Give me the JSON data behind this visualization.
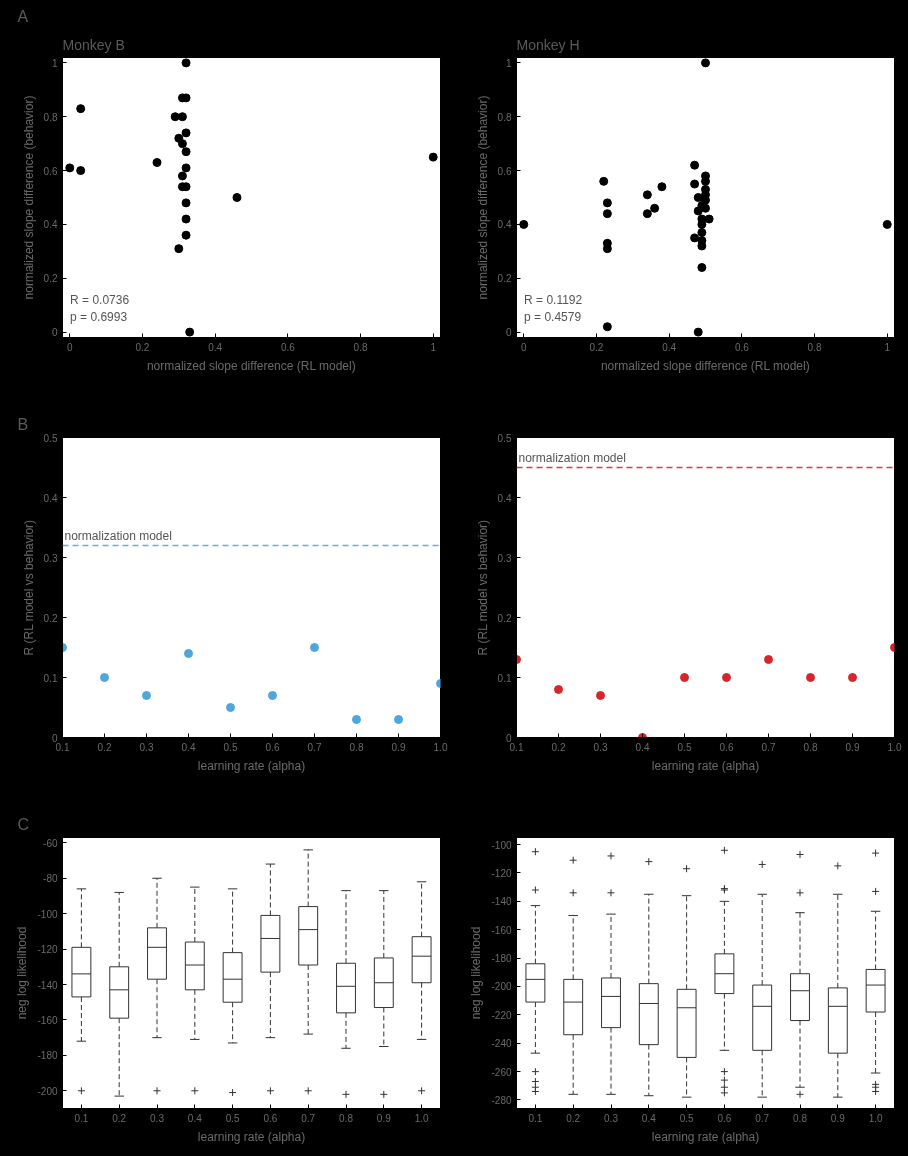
{
  "chart_data": [
    {
      "type": "scatter",
      "title": "Monkey B",
      "xlabel": "normalized slope difference (RL model)",
      "ylabel": "normalized slope difference (behavior)",
      "marker": "circle",
      "xlim": [
        -0.02,
        1.02
      ],
      "ylim": [
        -0.02,
        1.02
      ],
      "xticks": [
        0,
        0.2,
        0.4,
        0.6,
        0.8,
        1
      ],
      "yticks": [
        0,
        0.2,
        0.4,
        0.6,
        0.8,
        1
      ],
      "annotations": [
        "A",
        "R = 0.0736",
        "p = 0.6993"
      ],
      "series": [
        {
          "color": "#000000",
          "x": [
            0.32,
            0.31,
            0.32,
            0.03,
            0.29,
            0.31,
            0.32,
            0.3,
            0.31,
            0.32,
            0.24,
            1.0,
            0.0,
            0.03,
            0.32,
            0.31,
            0.31,
            0.32,
            0.32,
            0.32,
            0.46,
            0.32,
            0.3,
            0.33
          ],
          "values": [
            1.0,
            0.87,
            0.87,
            0.83,
            0.8,
            0.8,
            0.74,
            0.72,
            0.7,
            0.67,
            0.63,
            0.65,
            0.61,
            0.6,
            0.61,
            0.58,
            0.54,
            0.54,
            0.48,
            0.42,
            0.5,
            0.36,
            0.31,
            0.0
          ]
        }
      ]
    },
    {
      "type": "scatter",
      "title": "Monkey H",
      "xlabel": "normalized slope difference (RL model)",
      "ylabel": "normalized slope difference (behavior)",
      "marker": "circle",
      "xlim": [
        -0.02,
        1.02
      ],
      "ylim": [
        -0.02,
        1.02
      ],
      "xticks": [
        0,
        0.2,
        0.4,
        0.6,
        0.8,
        1
      ],
      "yticks": [
        0,
        0.2,
        0.4,
        0.6,
        0.8,
        1
      ],
      "annotations": [
        "R = 0.1192",
        "p = 0.4579"
      ],
      "series": [
        {
          "color": "#000000",
          "x": [
            0.5,
            0.47,
            0.5,
            0.22,
            0.5,
            0.47,
            0.38,
            0.34,
            0.5,
            0.5,
            0.48,
            0.5,
            0.23,
            0.49,
            0.36,
            0.5,
            0.48,
            0.34,
            0.23,
            0.51,
            0.49,
            0.0,
            1.0,
            0.49,
            0.49,
            0.47,
            0.49,
            0.23,
            0.23,
            0.49,
            0.49,
            0.23,
            0.48
          ],
          "values": [
            1.0,
            0.62,
            0.58,
            0.56,
            0.56,
            0.55,
            0.54,
            0.51,
            0.53,
            0.51,
            0.5,
            0.49,
            0.48,
            0.47,
            0.46,
            0.46,
            0.45,
            0.44,
            0.44,
            0.42,
            0.42,
            0.4,
            0.4,
            0.4,
            0.37,
            0.35,
            0.34,
            0.33,
            0.31,
            0.32,
            0.24,
            0.02,
            0.0
          ]
        }
      ]
    },
    {
      "type": "scatter",
      "xlabel": "learning rate (alpha)",
      "ylabel": "R (RL model vs behavior)",
      "marker": "circle",
      "xlim": [
        0.1,
        1.0
      ],
      "ylim": [
        0,
        0.5
      ],
      "xticks": [
        0.1,
        0.2,
        0.3,
        0.4,
        0.5,
        0.6,
        0.7,
        0.8,
        0.9,
        {
          "value": 1.0,
          "label": "1.0"
        }
      ],
      "yticks": [
        0,
        0.1,
        0.2,
        0.3,
        0.4,
        0.5
      ],
      "annotations": [
        "B"
      ],
      "ref_lines": [
        {
          "axis": "y",
          "value": 0.32,
          "label": "normalization model",
          "color": "#5ab4d6",
          "line_style": "dashed"
        }
      ],
      "series": [
        {
          "color": "#4ea6dc",
          "x": [
            0.1,
            0.2,
            0.3,
            0.4,
            0.5,
            0.6,
            0.7,
            0.8,
            0.9,
            1.0
          ],
          "values": [
            0.15,
            0.1,
            0.07,
            0.14,
            0.05,
            0.07,
            0.15,
            0.03,
            0.03,
            0.09
          ]
        }
      ]
    },
    {
      "type": "scatter",
      "xlabel": "learning rate (alpha)",
      "ylabel": "R (RL model vs behavior)",
      "marker": "circle",
      "xlim": [
        0.1,
        1.0
      ],
      "ylim": [
        0,
        0.5
      ],
      "xticks": [
        0.1,
        0.2,
        0.3,
        0.4,
        0.5,
        0.6,
        0.7,
        0.8,
        0.9,
        {
          "value": 1.0,
          "label": "1.0"
        }
      ],
      "yticks": [
        0,
        0.1,
        0.2,
        0.3,
        0.4,
        0.5
      ],
      "ref_lines": [
        {
          "axis": "y",
          "value": 0.45,
          "label": "normalization model",
          "color": "#e03a3a",
          "line_style": "dashed"
        }
      ],
      "series": [
        {
          "color": "#d7262b",
          "x": [
            0.1,
            0.2,
            0.3,
            0.4,
            0.5,
            0.6,
            0.7,
            0.8,
            0.9,
            1.0
          ],
          "values": [
            0.13,
            0.08,
            0.07,
            0.0,
            0.1,
            0.1,
            0.13,
            0.1,
            0.1,
            0.15
          ]
        }
      ]
    },
    {
      "type": "box",
      "xlabel": "learning rate (alpha)",
      "ylabel": "neg log likelihood",
      "color": "#333333",
      "ylim": [
        -210,
        -57
      ],
      "yticks": [
        -60,
        -80,
        -100,
        -120,
        -140,
        -160,
        -180,
        -200
      ],
      "annotations": [
        "C"
      ],
      "categories": [
        "0.1",
        "0.2",
        "0.3",
        "0.4",
        "0.5",
        "0.6",
        "0.7",
        "0.8",
        "0.9",
        "1.0"
      ],
      "boxes": [
        {
          "low": -172,
          "q1": -147,
          "median": -134,
          "q3": -119,
          "high": -86,
          "outliers": [
            -200
          ]
        },
        {
          "low": -203,
          "q1": -159,
          "median": -143,
          "q3": -130,
          "high": -88
        },
        {
          "low": -170,
          "q1": -137,
          "median": -119,
          "q3": -108,
          "high": -80,
          "outliers": [
            -200
          ]
        },
        {
          "low": -171,
          "q1": -143,
          "median": -129,
          "q3": -116,
          "high": -85,
          "outliers": [
            -200
          ]
        },
        {
          "low": -173,
          "q1": -150,
          "median": -137,
          "q3": -122,
          "high": -86,
          "outliers": [
            -201
          ]
        },
        {
          "low": -170,
          "q1": -133,
          "median": -114,
          "q3": -101,
          "high": -72,
          "outliers": [
            -200
          ]
        },
        {
          "low": -168,
          "q1": -129,
          "median": -109,
          "q3": -96,
          "high": -64,
          "outliers": [
            -200
          ]
        },
        {
          "low": -176,
          "q1": -156,
          "median": -141,
          "q3": -128,
          "high": -87,
          "outliers": [
            -202
          ]
        },
        {
          "low": -175,
          "q1": -153,
          "median": -139,
          "q3": -125,
          "high": -87,
          "outliers": [
            -202
          ]
        },
        {
          "low": -171,
          "q1": -139,
          "median": -124,
          "q3": -113,
          "high": -82,
          "outliers": [
            -200
          ]
        }
      ]
    },
    {
      "type": "box",
      "xlabel": "learning rate (alpha)",
      "ylabel": "neg log likelihood",
      "color": "#333333",
      "ylim": [
        -286,
        -95
      ],
      "yticks": [
        -100,
        -120,
        -140,
        -160,
        -180,
        -200,
        -220,
        -240,
        -260,
        -280
      ],
      "categories": [
        "0.1",
        "0.2",
        "0.3",
        "0.4",
        "0.5",
        "0.6",
        "0.7",
        "0.8",
        "0.9",
        "1.0"
      ],
      "boxes": [
        {
          "low": -247,
          "q1": -211,
          "median": -195,
          "q3": -184,
          "high": -143,
          "outliers": [
            -105,
            -132,
            -260,
            -267,
            -271,
            -274
          ]
        },
        {
          "low": -276,
          "q1": -234,
          "median": -211,
          "q3": -195,
          "high": -150,
          "outliers": [
            -111,
            -134
          ]
        },
        {
          "low": -276,
          "q1": -229,
          "median": -207,
          "q3": -194,
          "high": -149,
          "outliers": [
            -108,
            -134
          ]
        },
        {
          "low": -277,
          "q1": -241,
          "median": -212,
          "q3": -198,
          "high": -135,
          "outliers": [
            -112
          ]
        },
        {
          "low": -278,
          "q1": -250,
          "median": -215,
          "q3": -202,
          "high": -136,
          "outliers": [
            -117
          ]
        },
        {
          "low": -245,
          "q1": -205,
          "median": -191,
          "q3": -177,
          "high": -140,
          "outliers": [
            -104,
            -131,
            -132,
            -260,
            -266,
            -271,
            -275
          ]
        },
        {
          "low": -278,
          "q1": -245,
          "median": -214,
          "q3": -199,
          "high": -135,
          "outliers": [
            -114
          ]
        },
        {
          "low": -271,
          "q1": -224,
          "median": -203,
          "q3": -191,
          "high": -148,
          "outliers": [
            -107,
            -134,
            -276
          ]
        },
        {
          "low": -278,
          "q1": -247,
          "median": -214,
          "q3": -201,
          "high": -135,
          "outliers": [
            -115
          ]
        },
        {
          "low": -261,
          "q1": -218,
          "median": -199,
          "q3": -188,
          "high": -147,
          "outliers": [
            -106,
            -133,
            -269,
            -271,
            -274
          ]
        }
      ]
    }
  ]
}
